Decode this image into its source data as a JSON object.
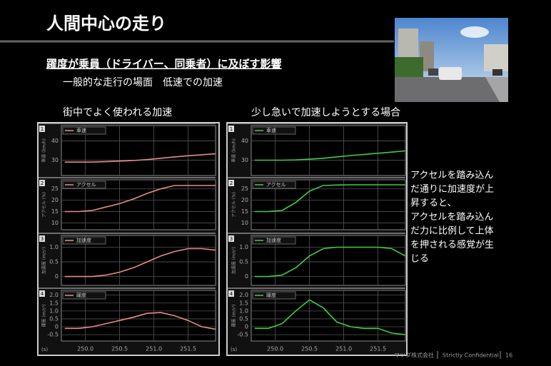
{
  "title": "人間中心の走り",
  "subtitle": "躍度が乗員（ドライバー、同乗者）に及ぼす影響",
  "scene": "一般的な走行の場面　低速での加速",
  "panels": [
    "街中でよく使われる加速",
    "少し急いで加速しようとする場合"
  ],
  "x_unit": "(s)",
  "note_lines": [
    "アクセルを踏み込ん",
    "だ通りに加速度が上",
    "昇すると、",
    "アクセルを踏み込ん",
    "だ力に比例して上体",
    "を押される感覚が生",
    "じる"
  ],
  "footer": {
    "company": "マツダ株式会社",
    "confidential": "Strictly Confidential",
    "page": "16"
  },
  "chart_data": [
    {
      "type": "line",
      "index": 1,
      "ylabel": "車速 (km/h)",
      "x": [
        249.7,
        249.9,
        250.1,
        250.3,
        250.5,
        250.7,
        250.9,
        251.1,
        251.3,
        251.5,
        251.7,
        251.9
      ],
      "series": [
        {
          "name": "車速",
          "color": "#e88a8a",
          "values": [
            29,
            29,
            29,
            29.2,
            29.5,
            29.8,
            30.3,
            31,
            31.7,
            32.3,
            32.8,
            33.3
          ]
        }
      ],
      "xlim": [
        249.65,
        251.9
      ],
      "ylim": [
        22,
        48
      ],
      "yticks": [
        30,
        40
      ],
      "xticks": [
        250,
        250.5,
        251,
        251.5
      ],
      "grid": true
    },
    {
      "type": "line",
      "index": 2,
      "ylabel": "アクセル (%)",
      "x": [
        249.7,
        249.9,
        250.1,
        250.3,
        250.5,
        250.7,
        250.9,
        251.1,
        251.3,
        251.5,
        251.7,
        251.9
      ],
      "series": [
        {
          "name": "アクセル",
          "color": "#e88a8a",
          "values": [
            15,
            15,
            15.5,
            17,
            18.5,
            20.5,
            23,
            25,
            26.5,
            26.5,
            26.5,
            26.5
          ]
        }
      ],
      "xlim": [
        249.65,
        251.9
      ],
      "ylim": [
        7,
        29
      ],
      "yticks": [
        10,
        15,
        20,
        25
      ],
      "xticks": [
        250,
        250.5,
        251,
        251.5
      ],
      "grid": true
    },
    {
      "type": "line",
      "index": 3,
      "ylabel": "加速度 (m/s²)",
      "x": [
        249.7,
        249.9,
        250.1,
        250.3,
        250.5,
        250.7,
        250.9,
        251.1,
        251.3,
        251.5,
        251.7,
        251.9
      ],
      "series": [
        {
          "name": "加速度",
          "color": "#e88a8a",
          "values": [
            0,
            0,
            0,
            0.05,
            0.15,
            0.3,
            0.5,
            0.7,
            0.85,
            0.95,
            0.95,
            0.9
          ]
        }
      ],
      "xlim": [
        249.65,
        251.9
      ],
      "ylim": [
        -0.3,
        1.4
      ],
      "yticks": [
        0,
        0.5,
        {
          "value": 1,
          "label": "1.0"
        }
      ],
      "xticks": [
        250,
        250.5,
        251,
        251.5
      ],
      "grid": true
    },
    {
      "type": "line",
      "index": 4,
      "ylabel": "躍度 (m/s³)",
      "x": [
        249.7,
        249.9,
        250.1,
        250.3,
        250.5,
        250.7,
        250.9,
        251.1,
        251.3,
        251.5,
        251.7,
        251.9
      ],
      "series": [
        {
          "name": "躍度",
          "color": "#e88a8a",
          "values": [
            -0.1,
            -0.1,
            0,
            0.2,
            0.4,
            0.6,
            0.85,
            0.9,
            0.7,
            0.4,
            0,
            -0.15
          ]
        }
      ],
      "xlim": [
        249.65,
        251.9
      ],
      "ylim": [
        -0.9,
        2.3
      ],
      "yticks": [
        -0.5,
        0,
        0.5,
        {
          "value": 1,
          "label": "1.0"
        },
        1.5,
        {
          "value": 2,
          "label": "2.0"
        }
      ],
      "xticks": [
        {
          "value": 250,
          "label": "250.0"
        },
        {
          "value": 250.5,
          "label": "250.5"
        },
        {
          "value": 251,
          "label": "251.0"
        },
        {
          "value": 251.5,
          "label": "251.5"
        }
      ],
      "grid": true
    },
    {
      "type": "line",
      "index": 1,
      "ylabel": "車速 (km/h)",
      "x": [
        249.7,
        249.9,
        250.1,
        250.3,
        250.5,
        250.7,
        250.9,
        251.1,
        251.3,
        251.5,
        251.7,
        251.9
      ],
      "series": [
        {
          "name": "車速",
          "color": "#44cc44",
          "values": [
            30,
            30,
            30,
            30.1,
            30.5,
            31,
            31.7,
            32.4,
            33,
            33.6,
            34.2,
            34.8
          ]
        }
      ],
      "xlim": [
        249.65,
        251.9
      ],
      "ylim": [
        22,
        48
      ],
      "yticks": [
        30,
        40
      ],
      "xticks": [
        250,
        250.5,
        251,
        251.5
      ],
      "grid": true
    },
    {
      "type": "line",
      "index": 2,
      "ylabel": "アクセル (%)",
      "x": [
        249.7,
        249.9,
        250.1,
        250.3,
        250.5,
        250.7,
        250.9,
        251.1,
        251.3,
        251.5,
        251.7,
        251.9
      ],
      "series": [
        {
          "name": "アクセル",
          "color": "#44cc44",
          "values": [
            15,
            15,
            15.5,
            19,
            24,
            26.5,
            26.7,
            26.8,
            26.8,
            26.8,
            26.8,
            26.8
          ]
        }
      ],
      "xlim": [
        249.65,
        251.9
      ],
      "ylim": [
        7,
        29
      ],
      "yticks": [
        10,
        15,
        20,
        25
      ],
      "xticks": [
        250,
        250.5,
        251,
        251.5
      ],
      "grid": true
    },
    {
      "type": "line",
      "index": 3,
      "ylabel": "加速度 (m/s²)",
      "x": [
        249.7,
        249.9,
        250.1,
        250.3,
        250.5,
        250.7,
        250.9,
        251.1,
        251.3,
        251.5,
        251.7,
        251.9
      ],
      "series": [
        {
          "name": "加速度",
          "color": "#44cc44",
          "values": [
            0,
            0,
            0.05,
            0.3,
            0.7,
            0.95,
            1,
            1,
            1,
            1,
            0.95,
            0.7
          ]
        }
      ],
      "xlim": [
        249.65,
        251.9
      ],
      "ylim": [
        -0.3,
        1.4
      ],
      "yticks": [
        0,
        0.5,
        {
          "value": 1,
          "label": "1.0"
        }
      ],
      "xticks": [
        250,
        250.5,
        251,
        251.5
      ],
      "grid": true
    },
    {
      "type": "line",
      "index": 4,
      "ylabel": "躍度 (m/s³)",
      "x": [
        249.7,
        249.9,
        250.1,
        250.3,
        250.5,
        250.7,
        250.9,
        251.1,
        251.3,
        251.5,
        251.7,
        251.9
      ],
      "series": [
        {
          "name": "躍度",
          "color": "#44cc44",
          "values": [
            -0.1,
            -0.1,
            0.2,
            1,
            1.7,
            1.2,
            0.3,
            0,
            -0.1,
            -0.1,
            -0.4,
            -0.5
          ]
        }
      ],
      "xlim": [
        249.65,
        251.9
      ],
      "ylim": [
        -0.9,
        2.3
      ],
      "yticks": [
        -0.5,
        0,
        0.5,
        {
          "value": 1,
          "label": "1.0"
        },
        1.5,
        {
          "value": 2,
          "label": "2.0"
        }
      ],
      "xticks": [
        {
          "value": 250,
          "label": "250.0"
        },
        {
          "value": 250.5,
          "label": "250.5"
        },
        {
          "value": 251,
          "label": "251.0"
        },
        {
          "value": 251.5,
          "label": "251.5"
        }
      ],
      "grid": true
    }
  ]
}
